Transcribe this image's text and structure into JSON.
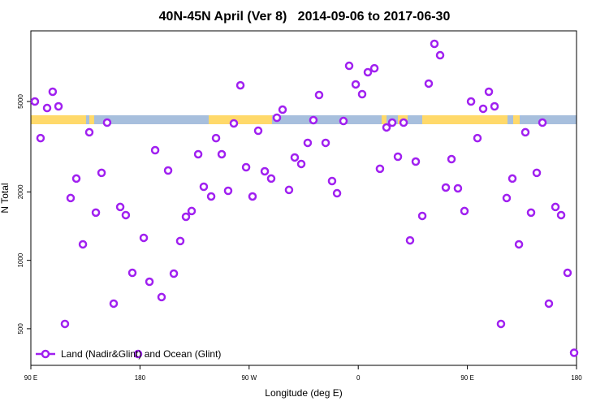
{
  "chart_data": {
    "type": "scatter",
    "title": "40N-45N April (Ver 8)   2014-09-06 to 2017-06-30",
    "xlabel": "Longitude (deg E)",
    "ylabel": "N Total",
    "xlim": [
      90,
      540
    ],
    "ylim": [
      345,
      10230
    ],
    "ylog": true,
    "xticks": [
      {
        "value": 90,
        "label": "90 E"
      },
      180,
      {
        "value": 270,
        "label": "90 W"
      },
      0,
      {
        "value": 450,
        "label": "90 E"
      },
      180
    ],
    "xtick_positions": [
      90,
      180,
      270,
      360,
      450,
      540
    ],
    "yticks": [
      500,
      1000,
      2000,
      5000
    ],
    "legend": "bottom-left",
    "series": [
      {
        "name": "Land (Nadir&Glint) and Ocean (Glint)",
        "color": "#a020f0",
        "x": [
          93.3,
          98,
          103.4,
          108,
          112.8,
          118.1,
          122.8,
          127.5,
          132.9,
          138.2,
          143.6,
          148.3,
          152.9,
          158.3,
          163.7,
          168.3,
          173.7,
          178.4,
          183.1,
          187.8,
          192.5,
          197.8,
          203.2,
          207.9,
          213.2,
          217.9,
          222.6,
          228,
          232.6,
          238.7,
          242.7,
          247.4,
          252.7,
          257.4,
          262.8,
          267.5,
          272.8,
          277.5,
          282.9,
          288.2,
          292.9,
          297.6,
          302.9,
          307.6,
          313,
          318.3,
          323,
          327.7,
          333.1,
          338.4,
          342.5,
          347.8,
          352.5,
          357.9,
          363.2,
          367.9,
          373.3,
          377.9,
          383.3,
          388,
          392.7,
          397.4,
          402.7,
          407.4,
          412.8,
          418.1,
          422.8,
          427.5,
          432.2,
          436.9,
          442.2,
          447.6,
          453,
          458.3,
          463,
          467.7,
          472.4,
          477.7,
          482.4,
          487.1,
          492.5,
          497.8,
          502.5,
          507.2,
          511.9,
          517.2,
          522.6,
          527.3,
          532.6,
          538
        ],
        "values": [
          5000,
          3450,
          4680,
          5520,
          4760,
          525,
          1880,
          2290,
          1176,
          3660,
          1622,
          2427,
          4037,
          645,
          1717,
          1581,
          881,
          387,
          1256,
          805,
          3052,
          689,
          2485,
          874,
          1216,
          1555,
          1648,
          2930,
          2108,
          1910,
          3450,
          2930,
          2023,
          4005,
          5890,
          2568,
          1910,
          3718,
          2465,
          2290,
          4242,
          4604,
          2041,
          2836,
          2655,
          3288,
          4140,
          5340,
          3288,
          2233,
          1973,
          4103,
          7180,
          5945,
          5385,
          6725,
          7000,
          2529,
          3845,
          4037,
          2858,
          4037,
          1224,
          2720,
          1568,
          5995,
          8970,
          7990,
          2091,
          2788,
          2074,
          1648,
          5000,
          3450,
          4645,
          5520,
          4760,
          525,
          1880,
          2290,
          1176,
          3660,
          1622,
          2427,
          4037,
          645,
          1717,
          1581,
          881,
          392
        ]
      }
    ]
  }
}
